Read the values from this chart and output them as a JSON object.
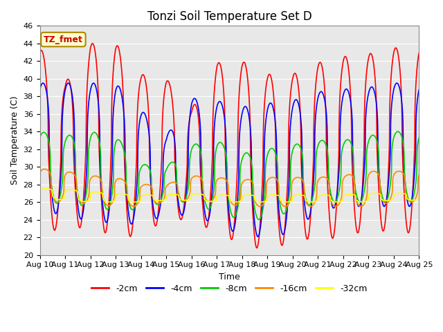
{
  "title": "Tonzi Soil Temperature Set D",
  "xlabel": "Time",
  "ylabel": "Soil Temperature (C)",
  "ylim": [
    20,
    46
  ],
  "yticks": [
    20,
    22,
    24,
    26,
    28,
    30,
    32,
    34,
    36,
    38,
    40,
    42,
    44,
    46
  ],
  "legend_label": "TZ_fmet",
  "series_labels": [
    "-2cm",
    "-4cm",
    "-8cm",
    "-16cm",
    "-32cm"
  ],
  "series_colors": [
    "#ff0000",
    "#0000ff",
    "#00cc00",
    "#ff8800",
    "#ffff00"
  ],
  "n_days": 15,
  "start_day": 10,
  "plot_bg": "#e8e8e8",
  "figure_bg": "#ffffff",
  "grid_color": "#ffffff",
  "title_fontsize": 12,
  "axis_fontsize": 9,
  "tick_fontsize": 8,
  "legend_fontsize": 9,
  "linewidth": 1.2,
  "peak_2cm": [
    43.5,
    39.5,
    44.0,
    44.0,
    40.5,
    40.0,
    36.5,
    41.8,
    42.0,
    40.5,
    40.5,
    41.8,
    42.5,
    42.8,
    43.5
  ],
  "trough_2cm": [
    23.2,
    22.5,
    23.5,
    21.8,
    22.3,
    24.0,
    24.0,
    22.5,
    21.2,
    20.5,
    21.5,
    22.0,
    21.8,
    23.0,
    22.5
  ],
  "peak_4cm": [
    39.5,
    39.5,
    39.5,
    39.5,
    36.5,
    33.5,
    37.8,
    37.5,
    36.8,
    37.2,
    37.5,
    38.5,
    38.8,
    39.0,
    39.5
  ],
  "trough_4cm": [
    25.5,
    24.2,
    24.0,
    23.5,
    23.5,
    24.5,
    24.5,
    23.5,
    22.2,
    22.0,
    22.5,
    25.0,
    25.5,
    25.5,
    25.5
  ],
  "peak_8cm": [
    34.0,
    33.5,
    34.0,
    33.5,
    30.3,
    30.0,
    32.5,
    33.0,
    31.5,
    32.0,
    32.5,
    33.0,
    33.0,
    33.5,
    34.0
  ],
  "trough_8cm": [
    26.0,
    25.8,
    25.5,
    25.0,
    25.2,
    26.0,
    26.0,
    24.8,
    24.0,
    24.0,
    25.0,
    26.0,
    26.0,
    26.0,
    26.0
  ],
  "peak_16cm": [
    29.8,
    29.5,
    29.0,
    28.8,
    28.0,
    28.0,
    29.0,
    28.8,
    28.5,
    28.8,
    28.8,
    28.8,
    29.0,
    29.5,
    29.5
  ],
  "trough_16cm": [
    26.0,
    26.0,
    25.8,
    25.5,
    25.5,
    26.0,
    26.2,
    26.0,
    25.5,
    25.5,
    25.5,
    25.5,
    25.5,
    25.5,
    26.0
  ],
  "peak_32cm": [
    27.5,
    27.5,
    27.2,
    27.0,
    26.8,
    26.8,
    27.0,
    26.8,
    26.8,
    26.8,
    26.8,
    26.8,
    26.8,
    27.0,
    27.0
  ],
  "trough_32cm": [
    26.5,
    26.2,
    26.0,
    26.0,
    26.0,
    26.2,
    26.2,
    26.0,
    26.0,
    26.0,
    26.0,
    26.0,
    26.0,
    26.0,
    26.2
  ]
}
